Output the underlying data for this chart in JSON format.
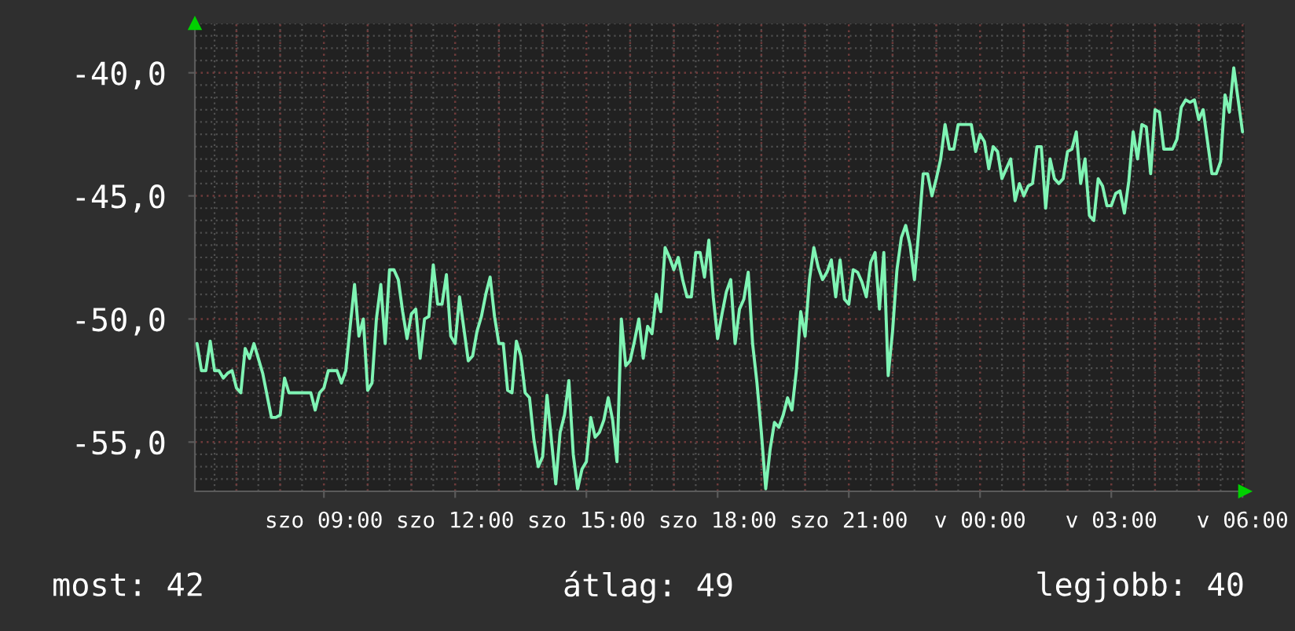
{
  "chart_data": {
    "type": "line",
    "color": "#7ff4b4",
    "categories": [
      null,
      null,
      null,
      null,
      null,
      null,
      null,
      null,
      null,
      null,
      null,
      null,
      null,
      null,
      null,
      null,
      null,
      null,
      null,
      null,
      null,
      null,
      null,
      null,
      null,
      null,
      null,
      null,
      null,
      "szo 09:00",
      null,
      null,
      null,
      null,
      null,
      null,
      null,
      null,
      null,
      null,
      null,
      null,
      null,
      null,
      null,
      null,
      null,
      null,
      null,
      null,
      null,
      null,
      null,
      null,
      null,
      null,
      null,
      null,
      null,
      "szo 12:00",
      null,
      null,
      null,
      null,
      null,
      null,
      null,
      null,
      null,
      null,
      null,
      null,
      null,
      null,
      null,
      null,
      null,
      null,
      null,
      null,
      null,
      null,
      null,
      null,
      null,
      null,
      null,
      null,
      null,
      "szo 15:00",
      null,
      null,
      null,
      null,
      null,
      null,
      null,
      null,
      null,
      null,
      null,
      null,
      null,
      null,
      null,
      null,
      null,
      null,
      null,
      null,
      null,
      null,
      null,
      null,
      null,
      null,
      null,
      null,
      null,
      "szo 18:00",
      null,
      null,
      null,
      null,
      null,
      null,
      null,
      null,
      null,
      null,
      null,
      null,
      null,
      null,
      null,
      null,
      null,
      null,
      null,
      null,
      null,
      null,
      null,
      null,
      null,
      null,
      null,
      null,
      null,
      "szo 21:00",
      null,
      null,
      null,
      null,
      null,
      null,
      null,
      null,
      null,
      null,
      null,
      null,
      null,
      null,
      null,
      null,
      null,
      null,
      null,
      null,
      null,
      null,
      null,
      null,
      null,
      null,
      null,
      null,
      null,
      "v 00:00",
      null,
      null,
      null,
      null,
      null,
      null,
      null,
      null,
      null,
      null,
      null,
      null,
      null,
      null,
      null,
      null,
      null,
      null,
      null,
      null,
      null,
      null,
      null,
      null,
      null,
      null,
      null,
      null,
      null,
      "v 03:00",
      null,
      null,
      null,
      null,
      null,
      null,
      null,
      null,
      null,
      null,
      null,
      null,
      null,
      null,
      null,
      null,
      null,
      null,
      null,
      null,
      null,
      null,
      null,
      null,
      null,
      null,
      null,
      null,
      null,
      "v 06:00"
    ],
    "values": [
      -51.0,
      -52.1,
      -52.1,
      -50.9,
      -52.1,
      -52.1,
      -52.4,
      -52.2,
      -52.1,
      -52.8,
      -53.0,
      -51.2,
      -51.6,
      -51.0,
      -51.6,
      -52.2,
      -53.1,
      -54.0,
      -54.0,
      -53.9,
      -52.4,
      -53.0,
      -53.0,
      -53.0,
      -53.0,
      -53.0,
      -53.0,
      -53.7,
      -53.0,
      -52.8,
      -52.1,
      -52.1,
      -52.1,
      -52.6,
      -52.1,
      -50.3,
      -48.6,
      -50.7,
      -50.0,
      -52.9,
      -52.6,
      -50.0,
      -48.6,
      -51.0,
      -48.0,
      -48.0,
      -48.4,
      -49.7,
      -50.8,
      -49.8,
      -49.6,
      -51.6,
      -50.0,
      -49.9,
      -47.8,
      -49.4,
      -49.4,
      -48.2,
      -50.7,
      -51.0,
      -49.1,
      -50.4,
      -51.7,
      -51.5,
      -50.5,
      -49.9,
      -49.0,
      -48.3,
      -49.9,
      -51.0,
      -51.0,
      -52.9,
      -53.0,
      -50.9,
      -51.5,
      -53.0,
      -53.2,
      -54.9,
      -56.0,
      -55.6,
      -53.1,
      -54.9,
      -56.7,
      -54.6,
      -53.9,
      -52.5,
      -55.5,
      -56.9,
      -56.1,
      -55.8,
      -54.0,
      -54.8,
      -54.6,
      -54.1,
      -53.2,
      -54.1,
      -55.8,
      -50.0,
      -51.9,
      -51.7,
      -50.9,
      -50.0,
      -51.6,
      -50.3,
      -50.6,
      -49.0,
      -49.7,
      -47.1,
      -47.5,
      -48.0,
      -47.5,
      -48.4,
      -49.1,
      -49.1,
      -47.3,
      -47.3,
      -48.3,
      -46.8,
      -49.1,
      -50.8,
      -49.8,
      -48.9,
      -48.4,
      -51.0,
      -49.6,
      -49.2,
      -48.1,
      -51.0,
      -52.6,
      -54.6,
      -56.9,
      -55.3,
      -54.2,
      -54.4,
      -53.9,
      -53.2,
      -53.7,
      -52.1,
      -49.7,
      -50.7,
      -48.4,
      -47.1,
      -47.9,
      -48.4,
      -48.1,
      -47.6,
      -49.1,
      -47.6,
      -49.2,
      -49.4,
      -48.0,
      -48.1,
      -48.5,
      -49.1,
      -47.7,
      -47.3,
      -49.6,
      -47.3,
      -52.3,
      -50.5,
      -48.0,
      -46.7,
      -46.2,
      -47.0,
      -48.4,
      -46.4,
      -44.1,
      -44.1,
      -45.0,
      -44.3,
      -43.5,
      -42.1,
      -43.1,
      -43.1,
      -42.1,
      -42.1,
      -42.1,
      -42.1,
      -43.2,
      -42.5,
      -42.8,
      -43.9,
      -43.0,
      -43.2,
      -44.3,
      -43.9,
      -43.5,
      -45.2,
      -44.5,
      -45.0,
      -44.6,
      -44.5,
      -43.0,
      -43.0,
      -45.5,
      -43.5,
      -44.3,
      -44.5,
      -44.3,
      -43.2,
      -43.1,
      -42.4,
      -44.5,
      -43.5,
      -45.8,
      -46.0,
      -44.3,
      -44.6,
      -45.4,
      -45.4,
      -44.9,
      -44.8,
      -45.7,
      -44.4,
      -42.4,
      -43.5,
      -42.1,
      -42.2,
      -44.1,
      -41.5,
      -41.6,
      -43.1,
      -43.1,
      -43.1,
      -42.7,
      -41.4,
      -41.1,
      -41.2,
      -41.1,
      -41.9,
      -41.5,
      -42.8,
      -44.1,
      -44.1,
      -43.6,
      -40.9,
      -41.6,
      -39.8,
      -41.1,
      -42.4
    ],
    "ylim": [
      -57,
      -38
    ],
    "yticks": [
      {
        "value": -55,
        "label": "-55,0"
      },
      {
        "value": -50,
        "label": "-50,0"
      },
      {
        "value": -45,
        "label": "-45,0"
      },
      {
        "value": -40,
        "label": "-40,0"
      }
    ],
    "grid": true,
    "annotations": [
      "most: 42",
      "átlag: 49",
      "legjobb: 40"
    ]
  }
}
